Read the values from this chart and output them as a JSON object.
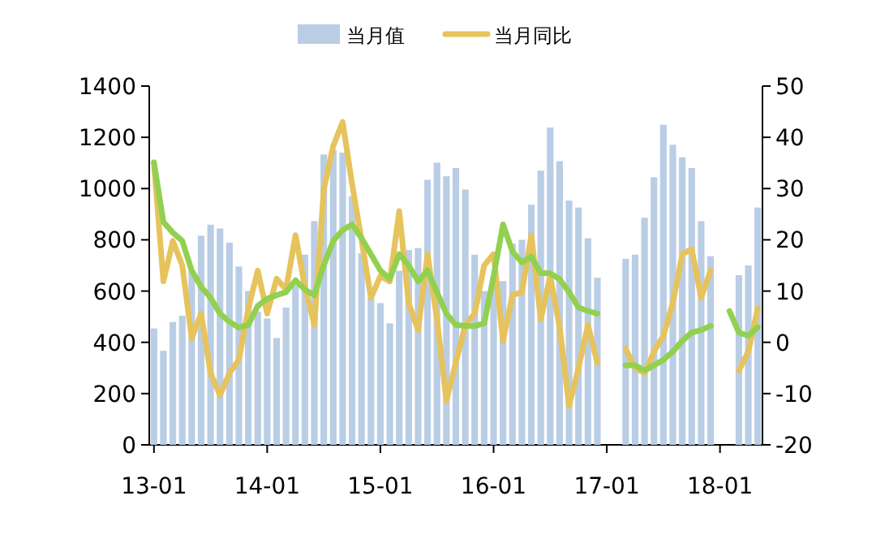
{
  "chart_data": {
    "type": "bar",
    "categories": [
      "13-01",
      null,
      null,
      null,
      null,
      null,
      null,
      null,
      null,
      null,
      null,
      null,
      "14-01",
      null,
      null,
      null,
      null,
      null,
      null,
      null,
      null,
      null,
      null,
      null,
      "15-01",
      null,
      null,
      null,
      null,
      null,
      null,
      null,
      null,
      null,
      null,
      null,
      "16-01",
      null,
      null,
      null,
      null,
      null,
      null,
      null,
      null,
      null,
      null,
      null,
      "17-01",
      null,
      null,
      null,
      null,
      null,
      null,
      null,
      null,
      null,
      null,
      null,
      "18-01",
      null,
      null,
      null,
      null
    ],
    "series": [
      {
        "name": "当月值",
        "color": "#b9cde5",
        "values": [
          454,
          367,
          479,
          504,
          679,
          816,
          859,
          844,
          789,
          696,
          600,
          520,
          493,
          417,
          536,
          622,
          742,
          873,
          1133,
          1150,
          1140,
          970,
          747,
          575,
          553,
          474,
          679,
          760,
          768,
          1034,
          1101,
          1048,
          1080,
          996,
          742,
          600,
          660,
          639,
          785,
          800,
          937,
          1070,
          1238,
          1107,
          953,
          926,
          806,
          652,
          null,
          null,
          726,
          742,
          886,
          1044,
          1249,
          1171,
          1122,
          1080,
          873,
          736,
          null,
          null,
          662,
          700,
          926
        ]
      },
      {
        "name": "当月同比",
        "type": "line",
        "axis": "y2",
        "color": "#e6c35c",
        "values": [
          35,
          11.9,
          19.8,
          15,
          0.8,
          5.6,
          -6,
          -10.3,
          -6,
          -3.4,
          6.6,
          14,
          5.6,
          12.4,
          10.3,
          20.9,
          10.8,
          3.4,
          29.8,
          38.3,
          43,
          30.9,
          20,
          8.7,
          12.9,
          11.9,
          25.6,
          7.6,
          2.4,
          17.2,
          4.5,
          -11.4,
          -3.9,
          3.4,
          5.6,
          15,
          17.2,
          0.3,
          9.2,
          9.8,
          20.9,
          4.5,
          12.9,
          3,
          -12.4,
          -5,
          3.4,
          -4,
          null,
          null,
          -1.3,
          -5,
          -6,
          -1.8,
          1.3,
          7.7,
          17.2,
          18.2,
          8.7,
          14,
          null,
          null,
          -5.5,
          -1.8,
          6.6
        ]
      },
      {
        "type": "line",
        "axis": "y2",
        "color": "#92d050",
        "values": [
          35.1,
          23.5,
          21.4,
          19.8,
          14,
          10.8,
          8.7,
          5.6,
          4,
          2.9,
          3.4,
          7.1,
          8.5,
          9.2,
          9.8,
          12.1,
          10.3,
          9.2,
          15,
          19.8,
          21.9,
          23,
          20.3,
          17.2,
          14,
          12.4,
          17.2,
          15,
          11.9,
          14,
          9.8,
          5.6,
          3.4,
          3.2,
          3.2,
          3.7,
          12.9,
          23,
          17.7,
          15.6,
          16.7,
          13.5,
          13.5,
          12.3,
          9.8,
          6.8,
          6.1,
          5.6,
          null,
          null,
          -4.5,
          -4.5,
          -5.5,
          -4.5,
          -3.4,
          -1.8,
          0.3,
          1.9,
          2.4,
          3.2,
          null,
          6.1,
          1.9,
          1.3,
          2.9
        ]
      }
    ],
    "ylim": [
      0,
      1400
    ],
    "yticks": [
      0,
      200,
      400,
      600,
      800,
      1000,
      1200,
      1400
    ],
    "y2lim": [
      -20,
      50
    ],
    "y2ticks": [
      -20,
      -10,
      0,
      10,
      20,
      30,
      40,
      50
    ],
    "legend": "top"
  }
}
